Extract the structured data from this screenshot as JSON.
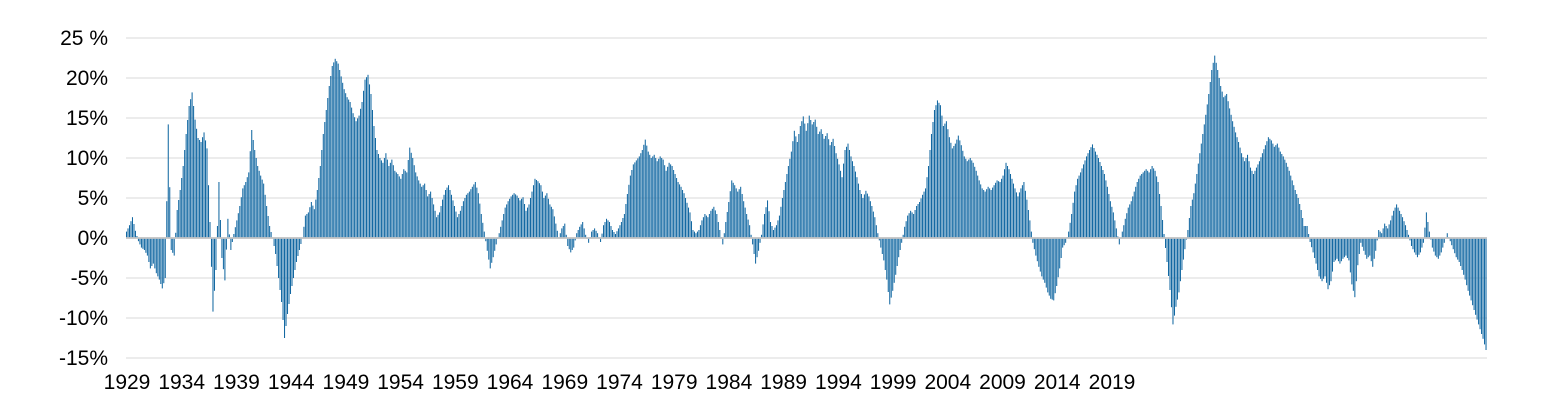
{
  "chart_data": {
    "type": "bar",
    "title": "",
    "subtitle": "",
    "unit": "percent",
    "description": "Dense monthly-style bar chart of a percentage series, 1929 onward, oscillating between about -14% and +23%",
    "legend": false,
    "grid": true,
    "colors": {
      "bar": "#1368a2",
      "gridline": "#d9d9d9",
      "zero_line": "#c9c9c9",
      "background": "#ffffff",
      "text": "#000000"
    },
    "y_axis": {
      "min": -15,
      "max": 25,
      "tick_step": 5,
      "tick_labels": [
        "25 %",
        "20%",
        "15%",
        "10%",
        "5%",
        "0%",
        "-5%",
        "-10%",
        "-15%"
      ],
      "tick_values": [
        25,
        20,
        15,
        10,
        5,
        0,
        -5,
        -10,
        -15
      ]
    },
    "x_axis": {
      "tick_labels": [
        "1929",
        "1934",
        "1939",
        "1944",
        "1949",
        "1954",
        "1959",
        "1964",
        "1969",
        "1974",
        "1979",
        "1984",
        "1989",
        "1994",
        "1999",
        "2004",
        "2009",
        "2014",
        "2019"
      ],
      "start_year": 1929,
      "label_interval_years": 5
    },
    "series": [
      {
        "name": "percent-change",
        "values": [
          0.8,
          1.6,
          2.6,
          0.9,
          -0.4,
          -1.2,
          -1.5,
          -2.2,
          -3.8,
          -3.2,
          -4.4,
          -5.2,
          -6.3,
          -5.0,
          14.2,
          -1.5,
          -2.2,
          3.5,
          6.0,
          9.0,
          13.0,
          16.5,
          18.2,
          14.8,
          12.5,
          12.0,
          13.2,
          11.2,
          2.0,
          -9.2,
          -4.0,
          7.0,
          -2.5,
          -5.3,
          2.4,
          -1.5,
          0.5,
          2.2,
          4.0,
          6.2,
          7.0,
          8.2,
          13.5,
          11.0,
          9.0,
          7.8,
          6.8,
          4.0,
          1.5,
          0.0,
          -2.0,
          -5.0,
          -8.0,
          -12.5,
          -9.5,
          -7.0,
          -5.0,
          -3.0,
          -1.5,
          0.0,
          2.8,
          3.2,
          4.5,
          3.6,
          6.0,
          9.0,
          13.0,
          16.0,
          19.0,
          21.5,
          22.4,
          21.8,
          20.2,
          18.6,
          17.6,
          17.0,
          15.6,
          14.6,
          15.3,
          17.0,
          19.8,
          20.4,
          18.0,
          14.0,
          11.0,
          10.0,
          9.4,
          10.6,
          9.0,
          9.8,
          8.4,
          8.0,
          7.4,
          8.6,
          8.2,
          11.3,
          10.0,
          8.2,
          7.2,
          6.4,
          6.8,
          5.2,
          5.8,
          4.2,
          2.6,
          3.2,
          4.8,
          6.0,
          6.6,
          5.4,
          4.0,
          2.6,
          3.4,
          4.6,
          5.4,
          5.8,
          6.4,
          7.0,
          5.6,
          3.0,
          0.8,
          -1.6,
          -3.8,
          -2.4,
          -0.8,
          0.6,
          2.2,
          3.8,
          4.6,
          5.2,
          5.6,
          5.3,
          4.7,
          5.1,
          3.4,
          4.2,
          5.8,
          7.4,
          7.1,
          6.6,
          5.0,
          5.6,
          4.2,
          3.6,
          1.8,
          0.0,
          1.2,
          1.8,
          -1.0,
          -1.8,
          -1.2,
          0.6,
          1.4,
          2.0,
          0.4,
          -0.6,
          0.8,
          1.2,
          0.6,
          -0.5,
          1.6,
          2.4,
          2.0,
          1.0,
          0.5,
          1.2,
          2.0,
          3.0,
          5.5,
          7.8,
          9.2,
          9.7,
          10.2,
          11.0,
          12.3,
          10.8,
          10.0,
          10.4,
          9.6,
          10.2,
          9.8,
          8.4,
          9.4,
          9.0,
          8.0,
          7.0,
          6.4,
          5.6,
          4.4,
          3.2,
          1.0,
          0.6,
          1.0,
          2.2,
          3.0,
          2.6,
          3.4,
          3.9,
          3.0,
          1.0,
          -0.8,
          2.0,
          4.5,
          7.2,
          6.6,
          5.8,
          6.4,
          4.6,
          3.0,
          1.6,
          -0.8,
          -3.2,
          -1.6,
          0.4,
          3.0,
          4.7,
          2.0,
          1.0,
          1.6,
          2.8,
          5.0,
          7.0,
          9.0,
          10.8,
          13.4,
          12.0,
          14.0,
          15.2,
          13.4,
          15.3,
          14.2,
          14.8,
          13.0,
          13.6,
          12.4,
          13.1,
          11.6,
          12.4,
          10.6,
          9.2,
          7.6,
          11.0,
          11.8,
          10.2,
          9.0,
          7.6,
          6.0,
          5.0,
          5.9,
          5.2,
          4.0,
          2.6,
          0.6,
          -1.2,
          -2.8,
          -5.2,
          -8.3,
          -6.6,
          -4.6,
          -2.4,
          -0.6,
          1.4,
          2.8,
          3.4,
          3.0,
          4.0,
          4.5,
          5.4,
          6.2,
          9.0,
          13.0,
          16.0,
          17.2,
          16.6,
          14.0,
          14.6,
          12.6,
          11.2,
          11.8,
          12.8,
          11.6,
          10.2,
          9.6,
          10.0,
          9.4,
          8.4,
          7.2,
          6.2,
          5.8,
          6.4,
          6.0,
          6.6,
          7.2,
          7.0,
          7.8,
          9.4,
          8.6,
          7.4,
          6.2,
          5.2,
          6.2,
          7.0,
          4.8,
          2.2,
          -0.6,
          -2.2,
          -3.6,
          -4.8,
          -5.6,
          -6.8,
          -7.6,
          -7.8,
          -6.0,
          -3.8,
          -1.2,
          -0.6,
          0.8,
          3.0,
          5.8,
          7.4,
          8.2,
          9.2,
          10.2,
          11.0,
          11.7,
          10.8,
          10.0,
          9.0,
          8.0,
          6.4,
          4.6,
          3.2,
          1.2,
          -0.8,
          0.8,
          2.4,
          3.8,
          4.6,
          5.8,
          7.0,
          7.8,
          8.2,
          8.6,
          8.2,
          9.0,
          8.4,
          7.0,
          4.0,
          0.5,
          -3.0,
          -6.5,
          -10.8,
          -8.6,
          -6.8,
          -4.0,
          -1.4,
          1.0,
          4.0,
          5.6,
          8.0,
          10.6,
          13.0,
          15.4,
          18.0,
          21.0,
          22.8,
          21.0,
          19.0,
          17.6,
          18.0,
          16.2,
          14.6,
          13.2,
          12.0,
          10.6,
          9.6,
          10.4,
          8.8,
          8.0,
          8.8,
          9.6,
          10.6,
          11.6,
          12.6,
          12.2,
          11.4,
          11.8,
          10.8,
          10.2,
          9.4,
          8.4,
          7.2,
          6.0,
          5.0,
          3.5,
          1.5,
          1.5,
          -0.5,
          -1.8,
          -3.2,
          -4.8,
          -5.4,
          -4.8,
          -6.4,
          -5.4,
          -3.0,
          -2.6,
          -3.2,
          -2.6,
          -2.2,
          -2.8,
          -5.8,
          -7.4,
          -3.4,
          -0.6,
          -1.6,
          -2.6,
          -2.2,
          -3.6,
          -1.6,
          1.0,
          0.6,
          1.8,
          1.2,
          2.2,
          3.4,
          4.2,
          3.4,
          2.6,
          1.6,
          0.4,
          -1.0,
          -1.8,
          -2.4,
          -1.8,
          -0.6,
          3.2,
          0.8,
          -1.2,
          -2.2,
          -2.6,
          -1.8,
          -0.6,
          0.6,
          -0.4,
          -1.4,
          -2.4,
          -3.0,
          -4.0,
          -5.2,
          -6.6,
          -7.8,
          -9.0,
          -10.2,
          -11.4,
          -12.6,
          -14.0
        ]
      }
    ]
  }
}
